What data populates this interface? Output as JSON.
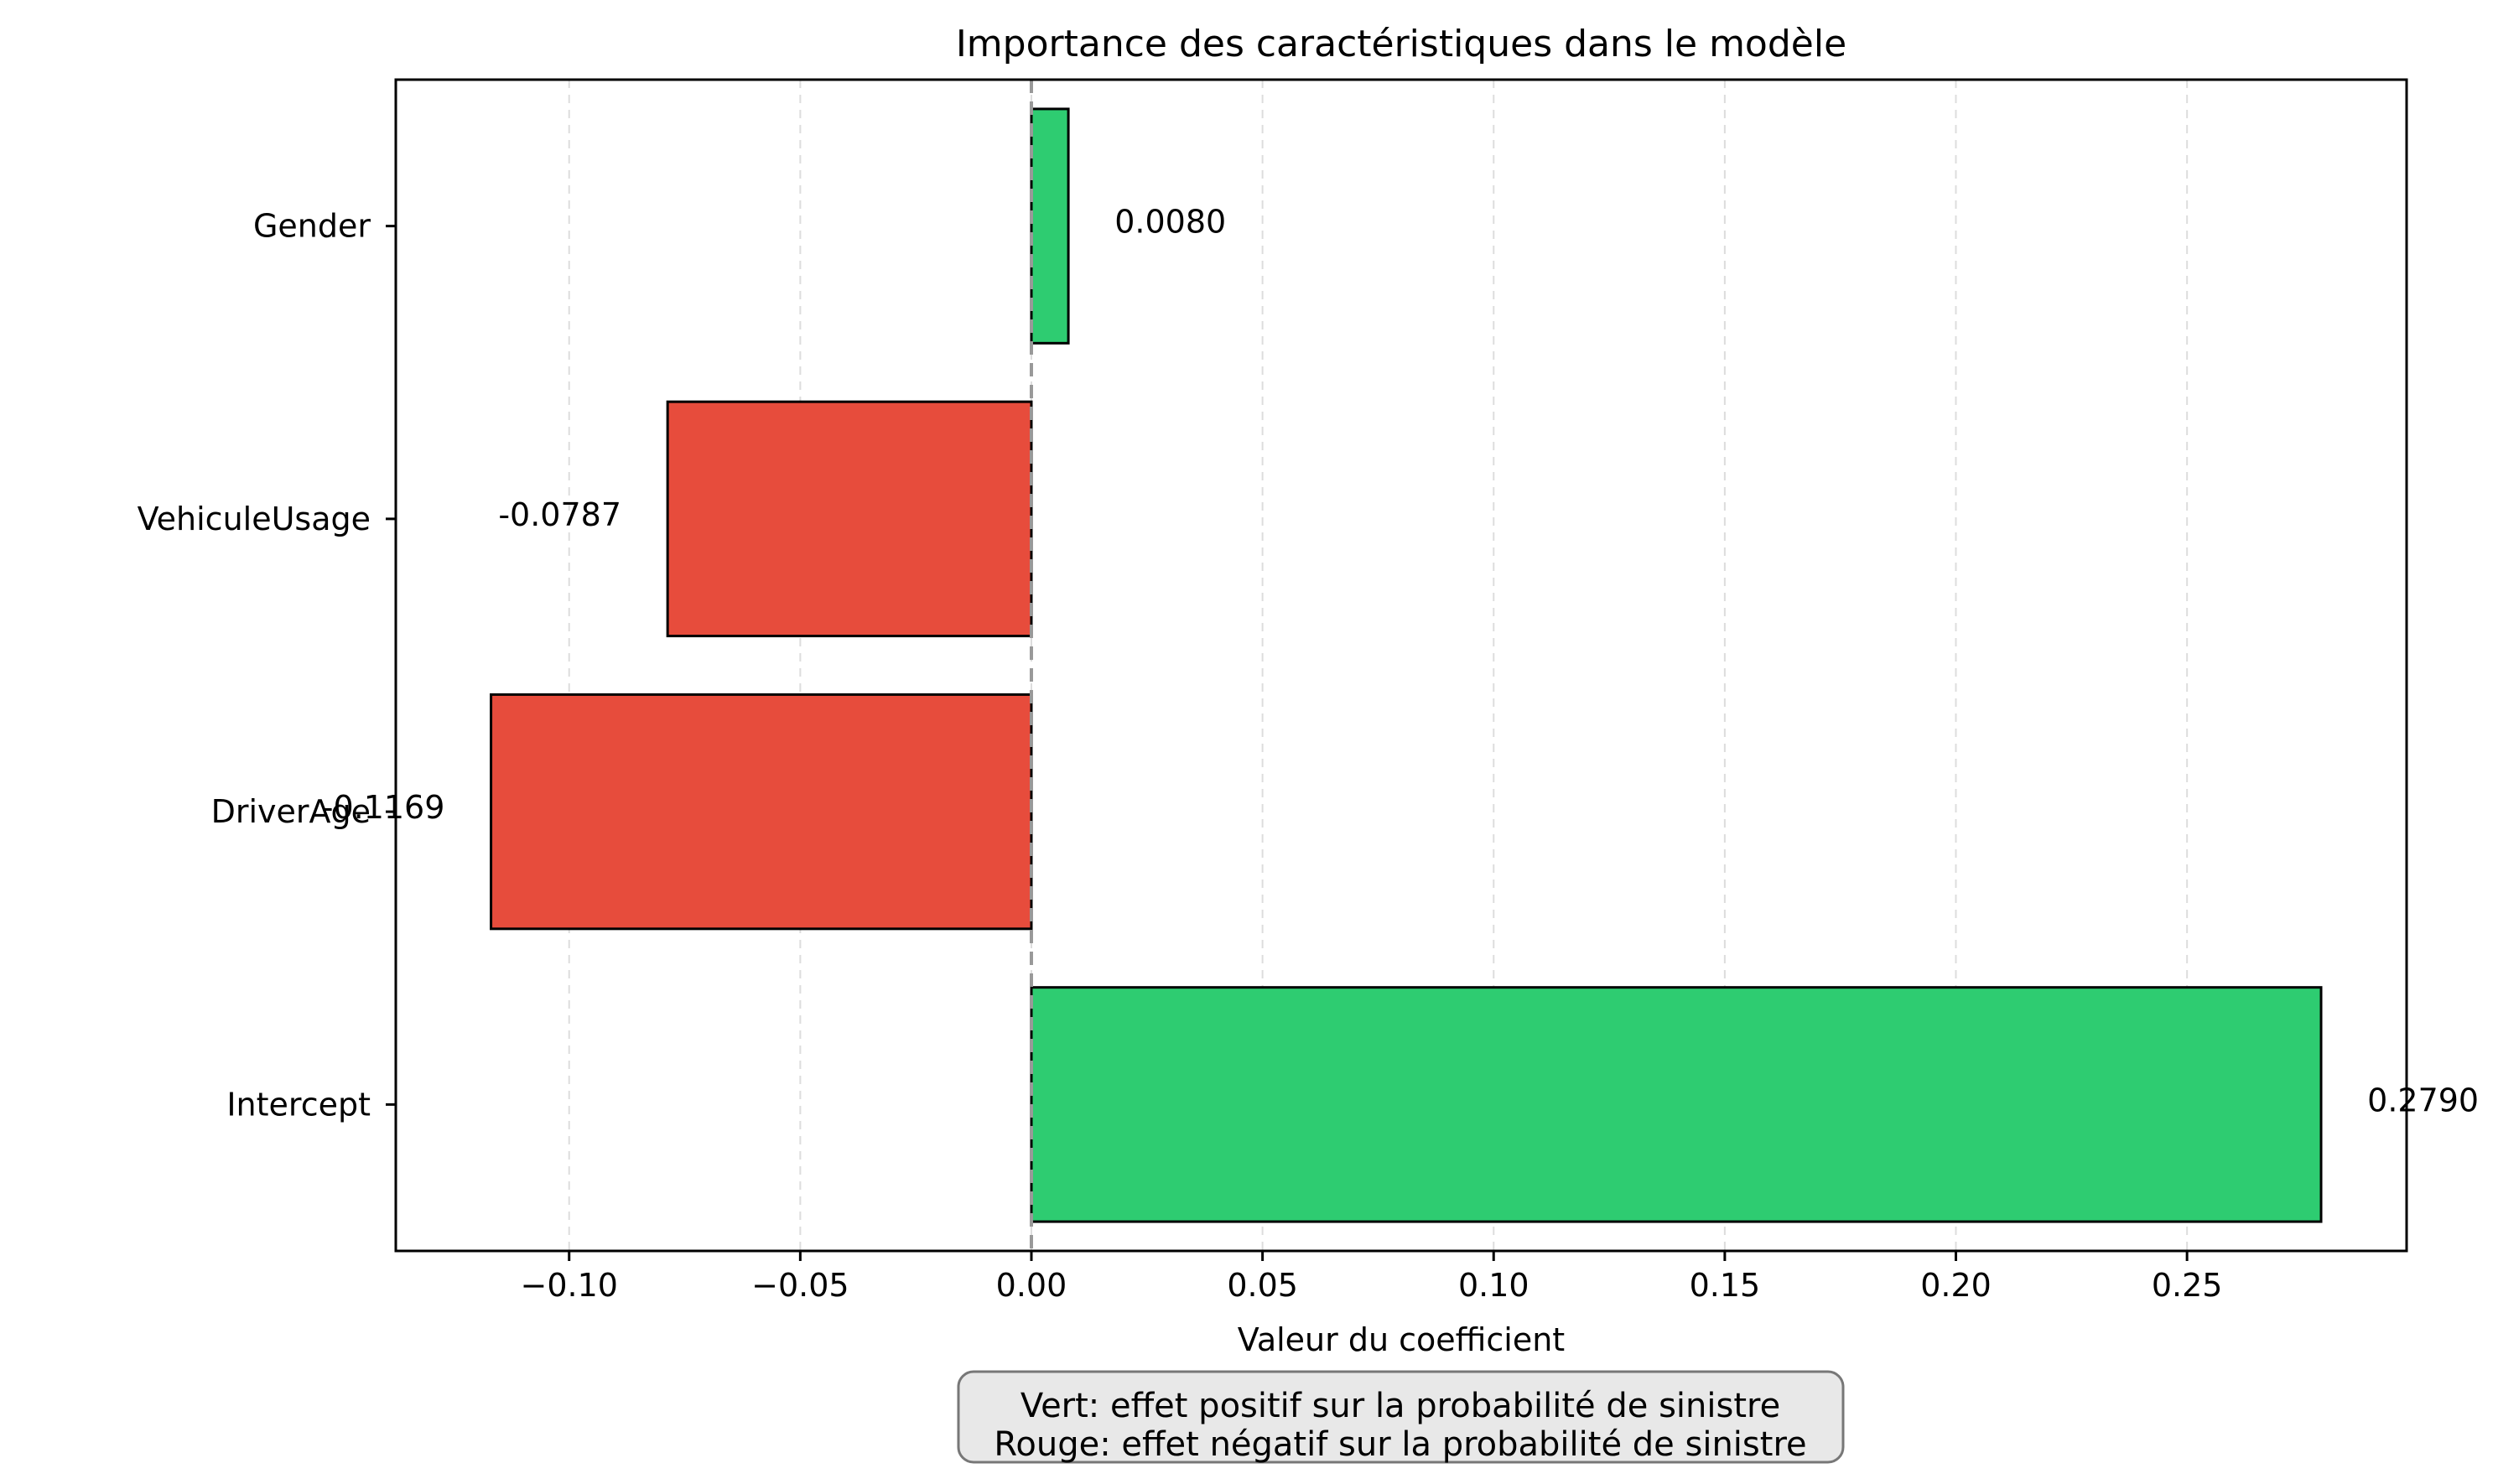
{
  "chart_data": {
    "type": "bar",
    "orientation": "horizontal",
    "title": "Importance des caractéristiques dans le modèle",
    "xlabel": "Valeur du coefficient",
    "ylabel": "",
    "xlim": [
      -0.1375,
      0.2975
    ],
    "xticks": [
      -0.1,
      -0.05,
      0.0,
      0.05,
      0.1,
      0.15,
      0.2,
      0.25
    ],
    "xtick_labels": [
      "−0.10",
      "−0.05",
      "0.00",
      "0.05",
      "0.10",
      "0.15",
      "0.20",
      "0.25"
    ],
    "grid": "x, dashed",
    "zero_line": true,
    "categories": [
      "Intercept",
      "DriverAge",
      "VehiculeUsage",
      "Gender"
    ],
    "values": [
      0.279,
      -0.1169,
      -0.0787,
      0.008
    ],
    "value_labels": [
      "0.2790",
      "-0.1169",
      "-0.0787",
      "0.0080"
    ],
    "colors": {
      "positive": "#2ecc71",
      "negative": "#e74c3c",
      "zero_line": "#999999",
      "grid": "#dddddd",
      "note_box": "#e8e8e8"
    },
    "note": {
      "line1": "Vert: effet positif sur la probabilité de sinistre",
      "line2": "Rouge: effet négatif sur la probabilité de sinistre"
    }
  }
}
